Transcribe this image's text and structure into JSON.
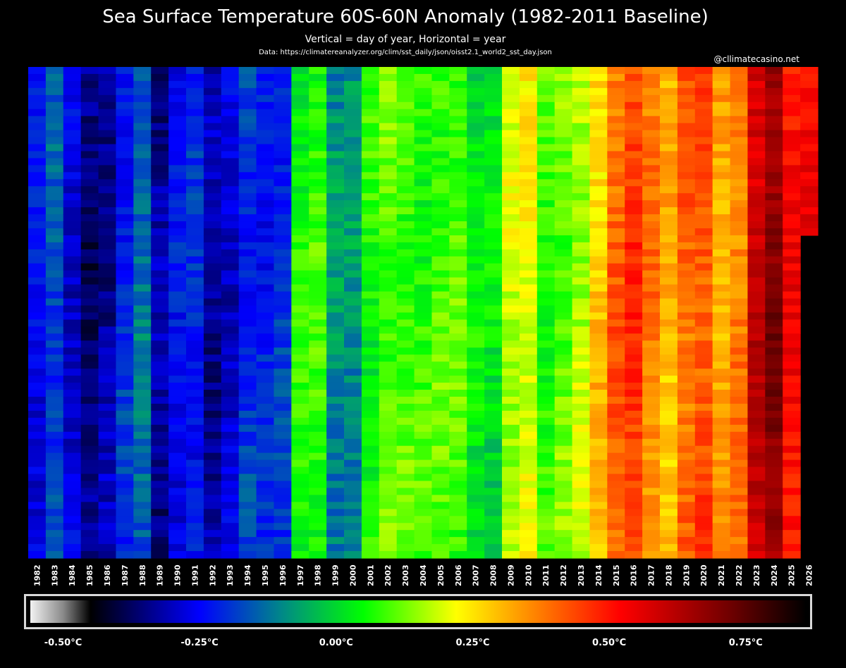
{
  "header": {
    "title": "Sea Surface Temperature 60S-60N Anomaly (1982-2011 Baseline)",
    "subtitle": "Vertical = day of year, Horizontal = year",
    "source": "Data: https://climatereanalyzer.org/clim/sst_daily/json/oisst2.1_world2_sst_day.json",
    "credit": "@cllimatecasino.net"
  },
  "chart_data": {
    "type": "heatmap",
    "title": "Sea Surface Temperature 60S-60N Anomaly (1982-2011 Baseline)",
    "subtitle": "Vertical = day of year, Horizontal = year",
    "x_axis": "year",
    "y_axis": "day of year",
    "years": [
      "1982",
      "1983",
      "1984",
      "1985",
      "1986",
      "1987",
      "1988",
      "1989",
      "1990",
      "1991",
      "1992",
      "1993",
      "1994",
      "1995",
      "1996",
      "1997",
      "1998",
      "1999",
      "2000",
      "2001",
      "2002",
      "2003",
      "2004",
      "2005",
      "2006",
      "2007",
      "2008",
      "2009",
      "2010",
      "2011",
      "2012",
      "2013",
      "2014",
      "2015",
      "2016",
      "2017",
      "2018",
      "2019",
      "2020",
      "2021",
      "2022",
      "2023",
      "2024",
      "2025",
      "2026"
    ],
    "annual_mean_anomaly_c": [
      -0.25,
      -0.17,
      -0.28,
      -0.36,
      -0.33,
      -0.21,
      -0.14,
      -0.33,
      -0.25,
      -0.22,
      -0.32,
      -0.28,
      -0.2,
      -0.22,
      -0.2,
      0.06,
      0.08,
      -0.09,
      -0.09,
      0.06,
      0.11,
      0.1,
      0.08,
      0.1,
      0.1,
      0.03,
      0.02,
      0.18,
      0.22,
      0.08,
      0.12,
      0.17,
      0.28,
      0.4,
      0.45,
      0.37,
      0.3,
      0.4,
      0.43,
      0.32,
      0.38,
      0.6,
      0.68,
      0.52,
      0.52
    ],
    "days_covered": 365,
    "partial_year": {
      "year": "2026",
      "days_covered": 124
    },
    "colorbar": {
      "min": -0.56,
      "max": 0.86,
      "ticks": [
        {
          "value": -0.5,
          "label": "-0.50°C"
        },
        {
          "value": -0.25,
          "label": "-0.25°C"
        },
        {
          "value": 0.0,
          "label": "0.00°C"
        },
        {
          "value": 0.25,
          "label": "0.25°C"
        },
        {
          "value": 0.5,
          "label": "0.50°C"
        },
        {
          "value": 0.75,
          "label": "0.75°C"
        }
      ],
      "stops": [
        {
          "value": -0.56,
          "color": "#f2f2f2"
        },
        {
          "value": -0.5,
          "color": "#8a8a8a"
        },
        {
          "value": -0.45,
          "color": "#000000"
        },
        {
          "value": -0.25,
          "color": "#0000ff"
        },
        {
          "value": -0.1,
          "color": "#008888"
        },
        {
          "value": 0.05,
          "color": "#00ff00"
        },
        {
          "value": 0.22,
          "color": "#ffff00"
        },
        {
          "value": 0.33,
          "color": "#ffa000"
        },
        {
          "value": 0.52,
          "color": "#ff0000"
        },
        {
          "value": 0.72,
          "color": "#700000"
        },
        {
          "value": 0.86,
          "color": "#000000"
        }
      ]
    }
  }
}
